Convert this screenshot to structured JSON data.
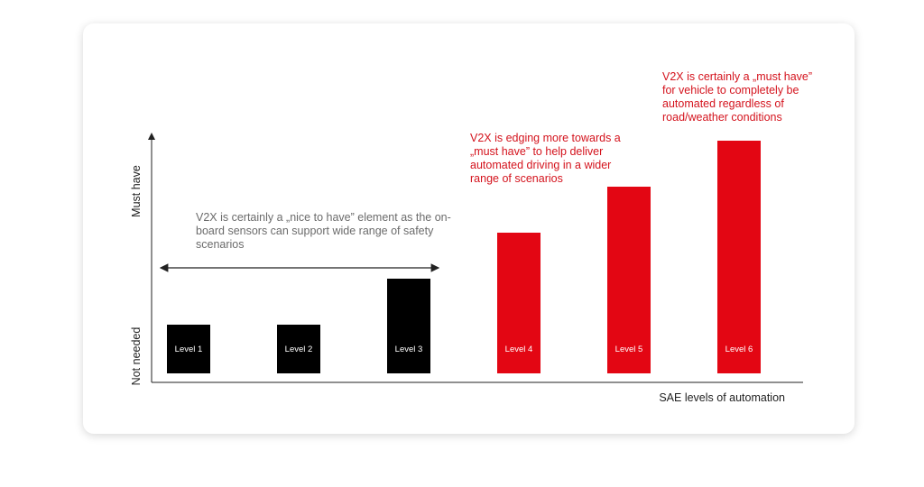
{
  "chart_data": {
    "type": "bar",
    "categories": [
      "Level 1",
      "Level 2",
      "Level 3",
      "Level 4",
      "Level 5",
      "Level 6"
    ],
    "values": [
      1,
      1,
      2,
      3,
      4,
      5
    ],
    "ylim": [
      0,
      5
    ],
    "xlabel": "SAE levels of automation",
    "ylabel_low": "Not needed",
    "ylabel_high": "Must have",
    "bar_colors": [
      "#000000",
      "#000000",
      "#000000",
      "#e30613",
      "#e30613",
      "#e30613"
    ],
    "annotations": {
      "nice_to_have": "V2X is certainly a „nice to have” element as the on-board sensors can support wide range of safety scenarios",
      "edging": "V2X is edging more towards a „must have” to help deliver automated driving in a wider range of scenarios",
      "must_have": "V2X is certainly a „must have” for vehicle to completely be automated regardless of road/weather conditions"
    }
  }
}
